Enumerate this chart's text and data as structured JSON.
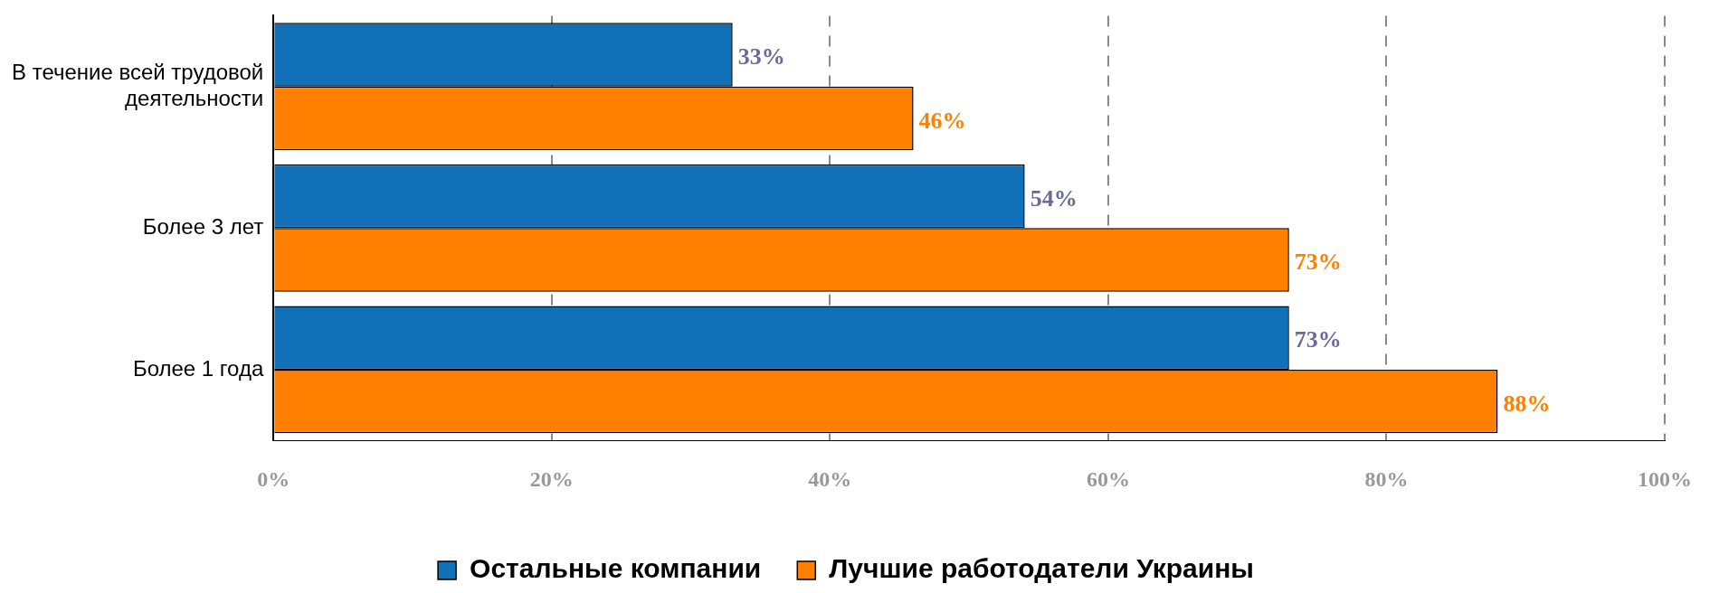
{
  "chart_data": {
    "type": "bar",
    "orientation": "horizontal",
    "categories": [
      "В течение всей трудовой деятельности",
      "Более 3 лет",
      "Более 1 года"
    ],
    "series": [
      {
        "name": "Остальные компании",
        "color": "#1170b8",
        "values": [
          33,
          54,
          73
        ],
        "value_labels": [
          "33%",
          "54%",
          "73%"
        ]
      },
      {
        "name": "Лучшие работодатели Украины",
        "color": "#ff8000",
        "values": [
          46,
          73,
          88
        ],
        "value_labels": [
          "46%",
          "73%",
          "88%"
        ]
      }
    ],
    "xlim": [
      0,
      100
    ],
    "xticks": [
      {
        "value": 0,
        "label": "0%"
      },
      {
        "value": 20,
        "label": "20%"
      },
      {
        "value": 40,
        "label": "40%"
      },
      {
        "value": 60,
        "label": "60%"
      },
      {
        "value": 80,
        "label": "80%"
      },
      {
        "value": 100,
        "label": "100%"
      }
    ],
    "grid": "x",
    "legend": "bottom"
  }
}
